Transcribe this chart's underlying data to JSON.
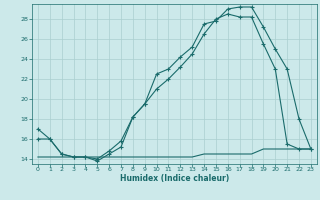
{
  "xlabel": "Humidex (Indice chaleur)",
  "bg_color": "#cce9ea",
  "line_color": "#1a6b6b",
  "grid_color": "#aacfcf",
  "xlim": [
    -0.5,
    23.5
  ],
  "ylim": [
    13.5,
    29.5
  ],
  "xticks": [
    0,
    1,
    2,
    3,
    4,
    5,
    6,
    7,
    8,
    9,
    10,
    11,
    12,
    13,
    14,
    15,
    16,
    17,
    18,
    19,
    20,
    21,
    22,
    23
  ],
  "yticks": [
    14,
    16,
    18,
    20,
    22,
    24,
    26,
    28
  ],
  "line1_x": [
    0,
    1,
    2,
    3,
    4,
    5,
    6,
    7,
    8,
    9,
    10,
    11,
    12,
    13,
    14,
    15,
    16,
    17,
    18,
    19,
    20,
    21,
    22,
    23
  ],
  "line1_y": [
    17.0,
    16.0,
    14.5,
    14.2,
    14.2,
    13.8,
    14.5,
    15.2,
    18.2,
    19.5,
    22.5,
    23.0,
    24.2,
    25.2,
    27.5,
    27.8,
    29.0,
    29.2,
    29.2,
    27.2,
    25.0,
    23.0,
    18.0,
    15.0
  ],
  "line2_x": [
    0,
    1,
    2,
    3,
    4,
    5,
    6,
    7,
    8,
    9,
    10,
    11,
    12,
    13,
    14,
    15,
    16,
    17,
    18,
    19,
    20,
    21,
    22,
    23
  ],
  "line2_y": [
    16.0,
    16.0,
    14.5,
    14.2,
    14.2,
    14.0,
    14.8,
    15.8,
    18.2,
    19.5,
    21.0,
    22.0,
    23.2,
    24.5,
    26.5,
    28.0,
    28.5,
    28.2,
    28.2,
    25.5,
    23.0,
    15.5,
    15.0,
    15.0
  ],
  "line3_x": [
    0,
    1,
    2,
    3,
    4,
    5,
    6,
    7,
    8,
    9,
    10,
    11,
    12,
    13,
    14,
    15,
    16,
    17,
    18,
    19,
    20,
    21,
    22,
    23
  ],
  "line3_y": [
    14.2,
    14.2,
    14.2,
    14.2,
    14.2,
    14.2,
    14.2,
    14.2,
    14.2,
    14.2,
    14.2,
    14.2,
    14.2,
    14.2,
    14.5,
    14.5,
    14.5,
    14.5,
    14.5,
    15.0,
    15.0,
    15.0,
    15.0,
    15.0
  ]
}
